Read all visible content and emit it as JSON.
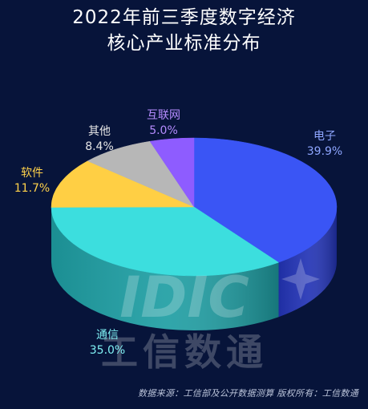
{
  "chart_data": {
    "type": "pie",
    "title_line1": "2022年前三季度数字经济",
    "title_line2": "核心产业标准分布",
    "slices": [
      {
        "name": "电子",
        "value": 39.9,
        "label": "39.9%",
        "color": "#3a55f5",
        "side": "#2233b5",
        "label_color": "#8ea6ff"
      },
      {
        "name": "通信",
        "value": 35.0,
        "label": "35.0%",
        "color": "#3cdede",
        "side": "#1e9ea3",
        "label_color": "#7ff0f3"
      },
      {
        "name": "软件",
        "value": 11.7,
        "label": "11.7%",
        "color": "#ffcf44",
        "side": "#c79b25",
        "label_color": "#ffd24a"
      },
      {
        "name": "其他",
        "value": 8.4,
        "label": "8.4%",
        "color": "#b7b7b7",
        "side": "#7f7f7f",
        "label_color": "#e6e6e6"
      },
      {
        "name": "互联网",
        "value": 5.0,
        "label": "5.0%",
        "color": "#8e5cff",
        "side": "#5d38bb",
        "label_color": "#b58cff"
      }
    ]
  },
  "watermark": {
    "logo": "IDIC",
    "text": "工信数通"
  },
  "footer": "数据来源：工信部及公开数据测算   版权所有：工信数通"
}
